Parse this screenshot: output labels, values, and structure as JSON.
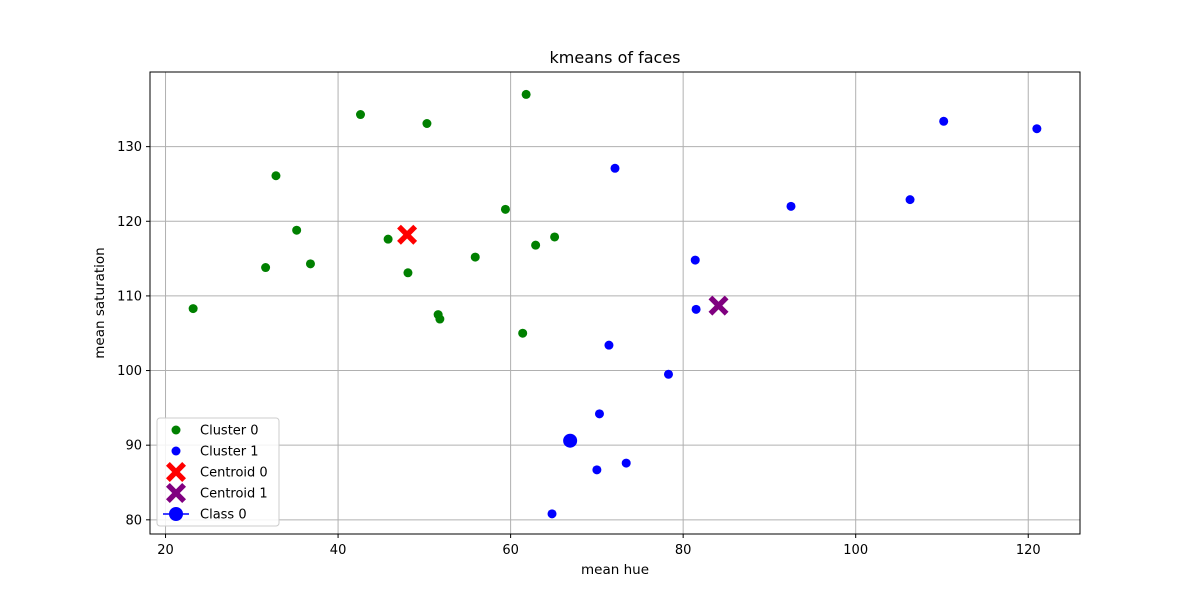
{
  "chart_data": {
    "type": "scatter",
    "title": "kmeans of faces",
    "xlabel": "mean hue",
    "ylabel": "mean saturation",
    "xlim": [
      18.2,
      126
    ],
    "ylim": [
      78.1,
      140
    ],
    "xticks": [
      20,
      40,
      60,
      80,
      100,
      120
    ],
    "yticks": [
      80,
      90,
      100,
      110,
      120,
      130
    ],
    "grid": true,
    "legend_position": "lower-left",
    "series": [
      {
        "name": "Cluster 0",
        "color": "#008000",
        "marker": "circle",
        "points": [
          {
            "x": 23.2,
            "y": 108.3
          },
          {
            "x": 31.6,
            "y": 113.8
          },
          {
            "x": 32.8,
            "y": 126.1
          },
          {
            "x": 35.2,
            "y": 118.8
          },
          {
            "x": 36.8,
            "y": 114.3
          },
          {
            "x": 42.6,
            "y": 134.3
          },
          {
            "x": 45.8,
            "y": 117.6
          },
          {
            "x": 48.1,
            "y": 113.1
          },
          {
            "x": 50.3,
            "y": 133.1
          },
          {
            "x": 51.6,
            "y": 107.5
          },
          {
            "x": 51.8,
            "y": 106.9
          },
          {
            "x": 55.9,
            "y": 115.2
          },
          {
            "x": 59.4,
            "y": 121.6
          },
          {
            "x": 61.4,
            "y": 105.0
          },
          {
            "x": 61.8,
            "y": 137.0
          },
          {
            "x": 62.9,
            "y": 116.8
          },
          {
            "x": 65.1,
            "y": 117.9
          }
        ]
      },
      {
        "name": "Cluster 1",
        "color": "#0000ff",
        "marker": "circle",
        "points": [
          {
            "x": 64.8,
            "y": 80.8
          },
          {
            "x": 70.0,
            "y": 86.7
          },
          {
            "x": 70.3,
            "y": 94.2
          },
          {
            "x": 71.4,
            "y": 103.4
          },
          {
            "x": 72.1,
            "y": 127.1
          },
          {
            "x": 73.4,
            "y": 87.6
          },
          {
            "x": 78.3,
            "y": 99.5
          },
          {
            "x": 81.4,
            "y": 114.8
          },
          {
            "x": 81.5,
            "y": 108.2
          },
          {
            "x": 92.5,
            "y": 122.0
          },
          {
            "x": 106.3,
            "y": 122.9
          },
          {
            "x": 110.2,
            "y": 133.4
          },
          {
            "x": 121.0,
            "y": 132.4
          }
        ]
      },
      {
        "name": "Centroid 0",
        "color": "#ff0000",
        "marker": "x-filled",
        "points": [
          {
            "x": 48.0,
            "y": 118.2
          }
        ]
      },
      {
        "name": "Centroid 1",
        "color": "#800080",
        "marker": "x-filled",
        "points": [
          {
            "x": 84.1,
            "y": 108.7
          }
        ]
      },
      {
        "name": " Class 0",
        "color": "#0000ff",
        "marker": "circle-large",
        "points": [
          {
            "x": 66.9,
            "y": 90.6
          }
        ]
      }
    ]
  }
}
